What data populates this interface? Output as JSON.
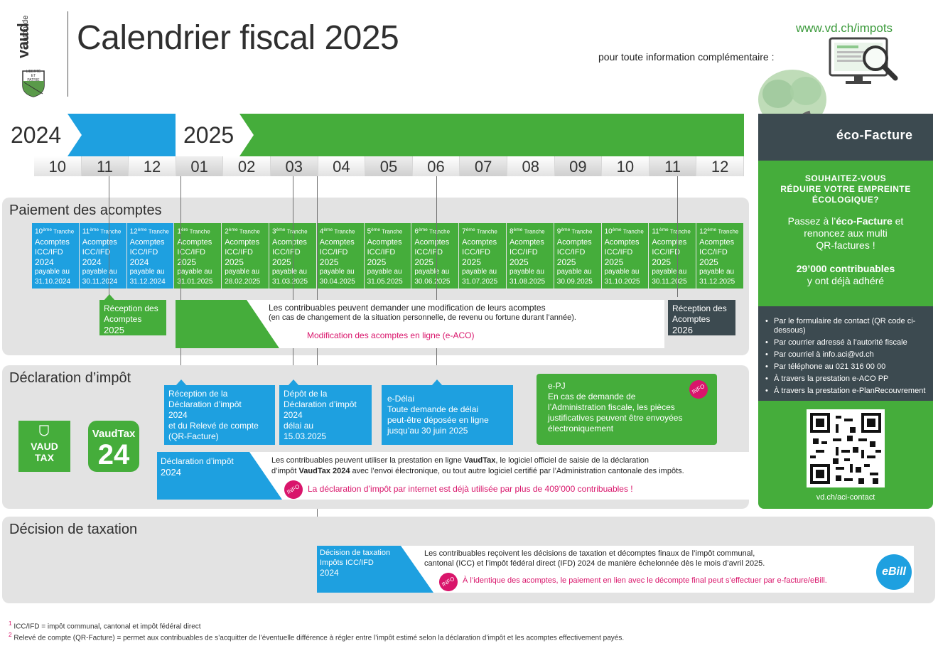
{
  "header": {
    "logo_line1": "canton de",
    "logo_line2": "vaud",
    "logo_motto1": "LIBERTÉ",
    "logo_motto2": "ET",
    "logo_motto3": "PATRIE",
    "title": "Calendrier fiscal 2025",
    "info_text": "pour toute information complémentaire :",
    "website": "www.vd.ch/impots"
  },
  "timeline": {
    "year_2024": "2024",
    "year_2025": "2025",
    "months": [
      "10",
      "11",
      "12",
      "01",
      "02",
      "03",
      "04",
      "05",
      "06",
      "07",
      "08",
      "09",
      "10",
      "11",
      "12"
    ]
  },
  "acomptes": {
    "section_title": "Paiement des acomptes",
    "tranches": [
      {
        "num": "10",
        "sup": "ème",
        "label": "Tranche",
        "line1": "Acomptes",
        "line2": "ICC/IFD",
        "year": "2024",
        "payable": "payable au",
        "date": "31.10.2024"
      },
      {
        "num": "11",
        "sup": "ème",
        "label": "Tranche",
        "line1": "Acomptes",
        "line2": "ICC/IFD",
        "year": "2024",
        "payable": "payable au",
        "date": "30.11.2024"
      },
      {
        "num": "12",
        "sup": "ème",
        "label": "Tranche",
        "line1": "Acomptes",
        "line2": "ICC/IFD",
        "year": "2024",
        "payable": "payable au",
        "date": "31.12.2024"
      },
      {
        "num": "1",
        "sup": "ère",
        "label": "Tranche",
        "line1": "Acomptes",
        "line2": "ICC/IFD",
        "year": "2025",
        "payable": "payable au",
        "date": "31.01.2025"
      },
      {
        "num": "2",
        "sup": "ème",
        "label": "Tranche",
        "line1": "Acomptes",
        "line2": "ICC/IFD",
        "year": "2025",
        "payable": "payable au",
        "date": "28.02.2025"
      },
      {
        "num": "3",
        "sup": "ème",
        "label": "Tranche",
        "line1": "Acomptes",
        "line2": "ICC/IFD",
        "year": "2025",
        "payable": "payable au",
        "date": "31.03.2025"
      },
      {
        "num": "4",
        "sup": "ème",
        "label": "Tranche",
        "line1": "Acomptes",
        "line2": "ICC/IFD",
        "year": "2025",
        "payable": "payable au",
        "date": "30.04.2025"
      },
      {
        "num": "5",
        "sup": "ème",
        "label": "Tranche",
        "line1": "Acomptes",
        "line2": "ICC/IFD",
        "year": "2025",
        "payable": "payable au",
        "date": "31.05.2025"
      },
      {
        "num": "6",
        "sup": "ème",
        "label": "Tranche",
        "line1": "Acomptes",
        "line2": "ICC/IFD",
        "year": "2025",
        "payable": "payable au",
        "date": "30.06.2025"
      },
      {
        "num": "7",
        "sup": "ème",
        "label": "Tranche",
        "line1": "Acomptes",
        "line2": "ICC/IFD",
        "year": "2025",
        "payable": "payable au",
        "date": "31.07.2025"
      },
      {
        "num": "8",
        "sup": "ème",
        "label": "Tranche",
        "line1": "Acomptes",
        "line2": "ICC/IFD",
        "year": "2025",
        "payable": "payable au",
        "date": "31.08.2025"
      },
      {
        "num": "9",
        "sup": "ème",
        "label": "Tranche",
        "line1": "Acomptes",
        "line2": "ICC/IFD",
        "year": "2025",
        "payable": "payable au",
        "date": "30.09.2025"
      },
      {
        "num": "10",
        "sup": "ème",
        "label": "Tranche",
        "line1": "Acomptes",
        "line2": "ICC/IFD",
        "year": "2025",
        "payable": "payable au",
        "date": "31.10.2025"
      },
      {
        "num": "11",
        "sup": "ème",
        "label": "Tranche",
        "line1": "Acomptes",
        "line2": "ICC/IFD",
        "year": "2025",
        "payable": "payable au",
        "date": "30.11.2025"
      },
      {
        "num": "12",
        "sup": "ème",
        "label": "Tranche",
        "line1": "Acomptes",
        "line2": "ICC/IFD",
        "year": "2025",
        "payable": "payable au",
        "date": "31.12.2025"
      }
    ],
    "reception_2025": {
      "line1": "Réception des",
      "line2": "Acomptes",
      "year": "2025"
    },
    "reception_2026": {
      "line1": "Réception des",
      "line2": "Acomptes",
      "year": "2026"
    },
    "modification_text1": "Les contribuables peuvent demander une modification de leurs acomptes",
    "modification_text2": "(en cas de changement de la situation personnelle, de revenu ou fortune durant l’année).",
    "modification_link": "Modification des acomptes en ligne (e-ACO)"
  },
  "declaration": {
    "section_title": "Déclaration d’impôt",
    "vaud_tax_line1": "VAUD",
    "vaud_tax_line2": "TAX",
    "vaudtax_title": "VaudTax",
    "vaudtax_num": "24",
    "reception_box": {
      "line1": "Réception de la",
      "line2": "Déclaration d’impôt",
      "line3": "2024",
      "line4": "et du Relevé de compte",
      "line5": "(QR-Facture)"
    },
    "depot_box": {
      "line1": "Dépôt de la",
      "line2": "Déclaration d’impôt",
      "line3": "2024",
      "line4": "délai au",
      "line5": "15.03.2025"
    },
    "edelai_box": {
      "line1": "e-Délai",
      "line2": "Toute demande de délai",
      "line3": "peut-être déposée en ligne",
      "line4": "jusqu’au 30 juin 2025"
    },
    "epj_box": {
      "line1": "e-PJ",
      "line2": "En cas de demande de",
      "line3": "l’Administration fiscale, les pièces",
      "line4": "justificatives peuvent être envoyées",
      "line5": "électroniquement"
    },
    "info_label": "INFO",
    "decl_tag_line1": "Déclaration d’impôt",
    "decl_tag_line2": "2024",
    "text1_a": "Les contribuables peuvent utiliser la prestation en ligne ",
    "text1_b": "VaudTax",
    "text1_c": ", le logiciel officiel de saisie de la déclaration",
    "text2_a": "d’impôt ",
    "text2_b": "VaudTax 2024",
    "text2_c": " avec l’envoi électronique, ou tout autre logiciel certifié par l’Administration cantonale des impôts.",
    "info_text": "La déclaration d’impôt par internet est déjà utilisée par plus de 409’000 contribuables !"
  },
  "decision": {
    "section_title": "Décision de taxation",
    "tag_line1": "Décision de taxation",
    "tag_line2": "Impôts ICC/IFD",
    "tag_line3": "2024",
    "text1": "Les contribuables reçoivent les décisions de taxation et décomptes finaux de l’impôt communal,",
    "text2": "cantonal (ICC) et l’impôt fédéral direct (IFD) 2024 de manière échelonnée dès le mois d’avril 2025.",
    "info_text": "À l’identique des acomptes, le paiement en lien avec le décompte final peut s’effectuer par e-facture/eBill.",
    "ebill": "eBill"
  },
  "panel": {
    "title": "éco-Facture",
    "question1": "SOUHAITEZ-VOUS",
    "question2": "RÉDUIRE VOTRE EMPREINTE",
    "question3": "ÉCOLOGIQUE?",
    "text1_a": "Passez à l’",
    "text1_b": "éco-Facture",
    "text1_c": " et",
    "text2": "renoncez aux multi",
    "text3": "QR-factures !",
    "stat1": "29’000 contribuables",
    "stat2": "y ont déjà adhéré",
    "contacts": [
      "Par le formulaire de contact (QR code ci-dessous)",
      "Par courrier adressé à l’autorité fiscale",
      "Par courriel à info.aci@vd.ch",
      "Par téléphone au 021 316 00 00",
      "À travers la prestation e-ACO PP",
      "À travers la prestation e-PlanRecouvrement"
    ],
    "contact_url": "vd.ch/aci-contact"
  },
  "footnotes": {
    "n1_sup": "1",
    "n1": "ICC/IFD = impôt communal, cantonal et impôt fédéral direct",
    "n2_sup": "2",
    "n2_a": "Relevé de compte (QR-Facture)",
    "n2_b": " = permet aux contribuables de s’acquitter de l’éventuelle différence à régler entre l’impôt estimé selon la déclaration d’impôt et les acomptes effectivement payés."
  },
  "colors": {
    "blue": "#1ea0e0",
    "green": "#45ad3b",
    "dark": "#3c4a50",
    "pink": "#d9156b",
    "grey_section": "#e3e3e3"
  }
}
